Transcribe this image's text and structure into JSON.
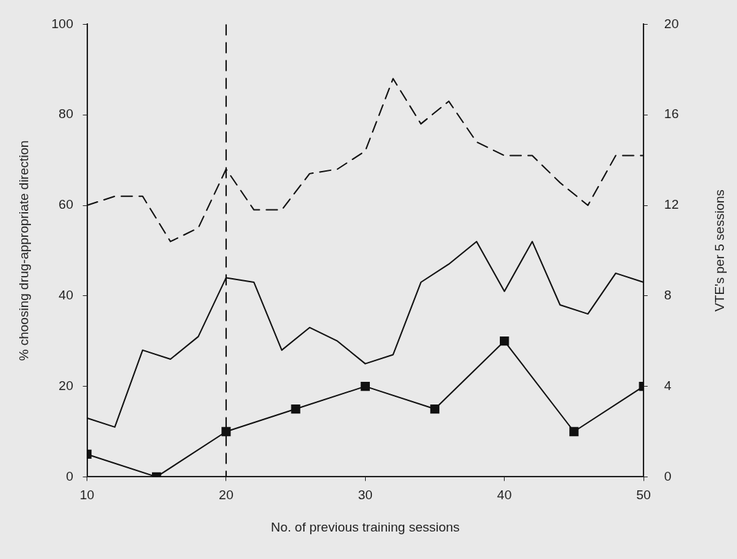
{
  "chart_data": {
    "type": "line",
    "xlabel": "No. of previous training sessions",
    "ylabel": "% choosing drug-appropriate direction",
    "y2label": "VTE's per 5 sessions",
    "xlim": [
      10,
      50
    ],
    "xticks": [
      10,
      20,
      30,
      40,
      50
    ],
    "ylim": [
      0,
      100
    ],
    "yticks": [
      0,
      20,
      40,
      60,
      80,
      100
    ],
    "y2lim": [
      0,
      20
    ],
    "y2ticks": [
      0,
      4,
      8,
      12,
      16,
      20
    ],
    "grid": false,
    "legend": false,
    "series": [
      {
        "color": "#111111",
        "line_style": "dashed",
        "marker": "none",
        "x": [
          10,
          12,
          14,
          16,
          18,
          20,
          22,
          24,
          26,
          28,
          30,
          32,
          34,
          36,
          38,
          40,
          42,
          44,
          46,
          48,
          50
        ],
        "values": [
          60,
          62,
          62,
          52,
          55,
          68,
          59,
          59,
          67,
          68,
          72,
          88,
          78,
          83,
          74,
          71,
          71,
          65,
          60,
          71,
          71
        ]
      },
      {
        "color": "#111111",
        "line_style": "solid",
        "marker": "none",
        "x": [
          10,
          12,
          14,
          16,
          18,
          20,
          22,
          24,
          26,
          28,
          30,
          32,
          34,
          36,
          38,
          40,
          42,
          44,
          46,
          48,
          50
        ],
        "values": [
          13,
          11,
          28,
          26,
          31,
          44,
          43,
          28,
          33,
          30,
          25,
          27,
          43,
          47,
          52,
          41,
          52,
          38,
          36,
          45,
          43
        ]
      },
      {
        "color": "#111111",
        "line_style": "solid",
        "marker": "square",
        "axis": "y2",
        "x": [
          10,
          15,
          20,
          25,
          30,
          35,
          40,
          45,
          50
        ],
        "values": [
          1,
          0,
          2,
          3,
          4,
          3,
          6,
          2,
          4
        ]
      }
    ],
    "ref_lines": [
      {
        "axis": "x",
        "value": 20,
        "line_style": "dashed",
        "color": "#111111"
      }
    ]
  }
}
